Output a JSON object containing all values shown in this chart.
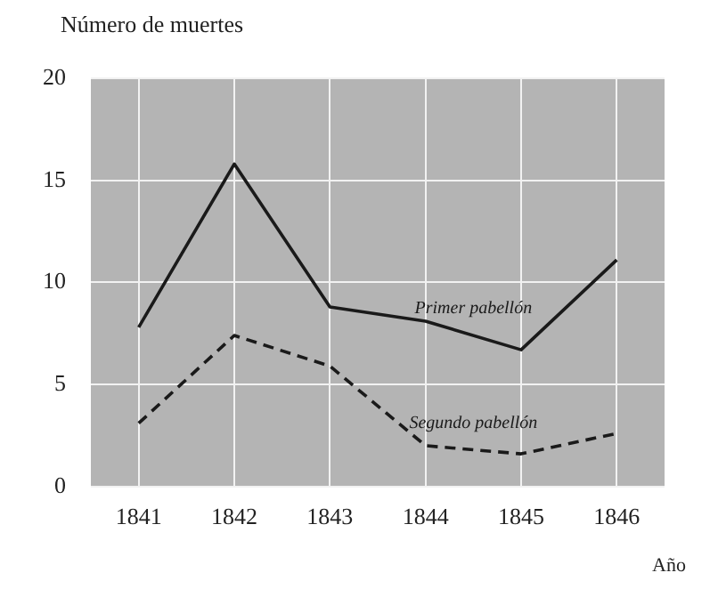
{
  "chart_data": {
    "type": "line",
    "ylabel": "Número de muertes",
    "xlabel": "Año",
    "categories": [
      "1841",
      "1842",
      "1843",
      "1844",
      "1845",
      "1846"
    ],
    "series": [
      {
        "name": "Primer pabellón",
        "color": "#1a1a1a",
        "line_style": "solid",
        "values": [
          7.8,
          15.8,
          8.8,
          8.1,
          6.7,
          11.1
        ]
      },
      {
        "name": "Segundo pabellón",
        "color": "#1a1a1a",
        "line_style": "dashed",
        "values": [
          3.1,
          7.4,
          5.9,
          2.0,
          1.6,
          2.6
        ]
      }
    ],
    "ylim": [
      0,
      20
    ],
    "yticks": [
      0,
      5,
      10,
      15,
      20
    ],
    "grid": true,
    "legend": false,
    "marker": "none"
  }
}
